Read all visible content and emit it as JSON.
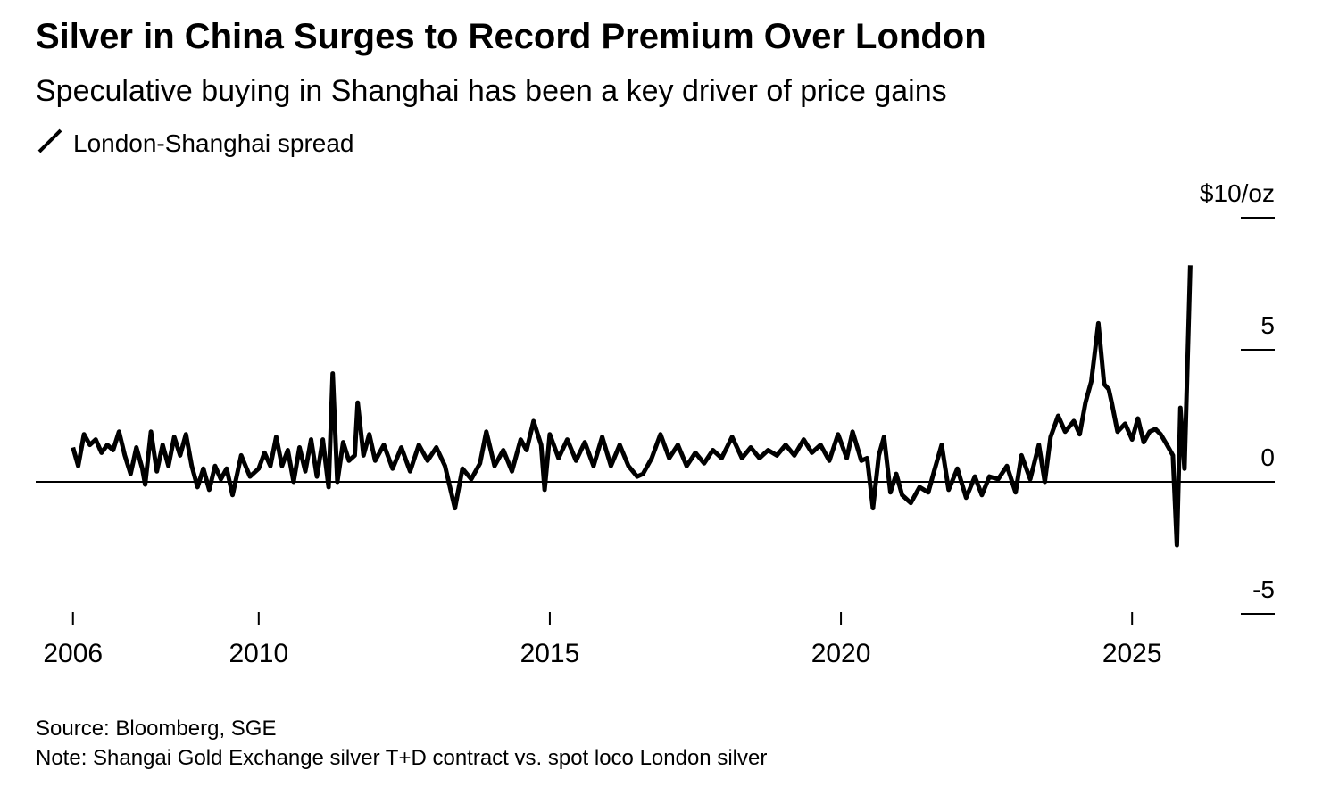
{
  "chart_data": {
    "type": "line",
    "title": "Silver in China Surges to Record Premium Over London",
    "subtitle": "Speculative buying in Shanghai has been a key driver of price gains",
    "source": "Source: Bloomberg, SGE",
    "note": "Note: Shangai Gold Exchange silver T+D contract vs. spot loco London silver",
    "x": [
      2006.81,
      2006.9,
      2007.0,
      2007.1,
      2007.2,
      2007.3,
      2007.4,
      2007.5,
      2007.6,
      2007.7,
      2007.8,
      2007.9,
      2008.0,
      2008.05,
      2008.15,
      2008.25,
      2008.35,
      2008.45,
      2008.55,
      2008.65,
      2008.75,
      2008.85,
      2008.95,
      2009.05,
      2009.15,
      2009.25,
      2009.35,
      2009.45,
      2009.55,
      2009.7,
      2009.85,
      2010.0,
      2010.1,
      2010.2,
      2010.3,
      2010.4,
      2010.5,
      2010.6,
      2010.7,
      2010.8,
      2010.9,
      2011.0,
      2011.1,
      2011.2,
      2011.27,
      2011.35,
      2011.45,
      2011.55,
      2011.65,
      2011.7,
      2011.8,
      2011.9,
      2012.0,
      2012.15,
      2012.3,
      2012.45,
      2012.6,
      2012.75,
      2012.9,
      2013.05,
      2013.2,
      2013.37,
      2013.5,
      2013.65,
      2013.8,
      2013.91,
      2014.05,
      2014.2,
      2014.35,
      2014.5,
      2014.6,
      2014.72,
      2014.85,
      2014.91,
      2015.0,
      2015.15,
      2015.3,
      2015.45,
      2015.6,
      2015.75,
      2015.9,
      2016.05,
      2016.2,
      2016.35,
      2016.5,
      2016.6,
      2016.75,
      2016.9,
      2017.05,
      2017.2,
      2017.35,
      2017.5,
      2017.65,
      2017.8,
      2017.95,
      2018.13,
      2018.3,
      2018.45,
      2018.6,
      2018.75,
      2018.9,
      2019.05,
      2019.2,
      2019.36,
      2019.5,
      2019.65,
      2019.8,
      2019.95,
      2020.1,
      2020.2,
      2020.35,
      2020.45,
      2020.55,
      2020.65,
      2020.74,
      2020.85,
      2020.95,
      2021.05,
      2021.2,
      2021.35,
      2021.5,
      2021.6,
      2021.73,
      2021.85,
      2022.0,
      2022.15,
      2022.3,
      2022.42,
      2022.55,
      2022.7,
      2022.85,
      2023.0,
      2023.1,
      2023.25,
      2023.4,
      2023.5,
      2023.6,
      2023.73,
      2023.85,
      2024.0,
      2024.1,
      2024.2,
      2024.3,
      2024.42,
      2024.52,
      2024.6,
      2024.65,
      2024.75,
      2024.88,
      2025.0,
      2025.1,
      2025.2,
      2025.3,
      2025.4,
      2025.49,
      2025.6,
      2025.7,
      2025.77,
      2025.83,
      2025.9,
      2026.0
    ],
    "series": [
      {
        "name": "London-Shanghai spread",
        "color": "#000000",
        "values": [
          1.3,
          0.6,
          1.8,
          1.4,
          1.6,
          1.1,
          1.4,
          1.2,
          1.9,
          1.0,
          0.3,
          1.3,
          0.5,
          -0.1,
          1.9,
          0.4,
          1.4,
          0.6,
          1.7,
          1.0,
          1.8,
          0.6,
          -0.2,
          0.5,
          -0.3,
          0.6,
          0.1,
          0.5,
          -0.5,
          1.0,
          0.2,
          0.5,
          1.1,
          0.6,
          1.7,
          0.6,
          1.2,
          0.0,
          1.3,
          0.4,
          1.6,
          0.2,
          1.6,
          -0.2,
          4.1,
          0.0,
          1.5,
          0.8,
          1.0,
          3.0,
          1.0,
          1.8,
          0.8,
          1.4,
          0.5,
          1.3,
          0.4,
          1.4,
          0.8,
          1.3,
          0.6,
          -1.0,
          0.5,
          0.1,
          0.7,
          1.9,
          0.6,
          1.2,
          0.4,
          1.6,
          1.2,
          2.3,
          1.4,
          -0.3,
          1.8,
          0.9,
          1.6,
          0.8,
          1.5,
          0.6,
          1.7,
          0.6,
          1.4,
          0.6,
          0.2,
          0.3,
          0.9,
          1.8,
          0.9,
          1.4,
          0.6,
          1.1,
          0.7,
          1.2,
          0.9,
          1.7,
          0.9,
          1.3,
          0.9,
          1.2,
          1.0,
          1.4,
          1.0,
          1.6,
          1.1,
          1.4,
          0.8,
          1.8,
          0.9,
          1.9,
          0.8,
          0.9,
          -1.0,
          1.0,
          1.7,
          -0.4,
          0.3,
          -0.5,
          -0.8,
          -0.2,
          -0.4,
          0.4,
          1.4,
          -0.3,
          0.5,
          -0.6,
          0.2,
          -0.5,
          0.2,
          0.1,
          0.6,
          -0.4,
          1.0,
          0.1,
          1.4,
          0.0,
          1.7,
          2.5,
          1.9,
          2.3,
          1.8,
          3.0,
          3.8,
          6.0,
          3.7,
          3.5,
          3.0,
          1.9,
          2.2,
          1.6,
          2.4,
          1.5,
          1.9,
          2.0,
          1.8,
          1.4,
          1.0,
          -2.4,
          2.8,
          0.5,
          8.2
        ]
      }
    ],
    "xlim": [
      2006.17,
      2027.45
    ],
    "xticks": [
      {
        "value": 2006.81,
        "label": "2006"
      },
      2010,
      2015,
      2020,
      2025
    ],
    "ylim": [
      -5,
      10
    ],
    "yticks": [
      -5,
      0,
      5,
      {
        "value": 10,
        "label": "$10/oz"
      }
    ]
  }
}
